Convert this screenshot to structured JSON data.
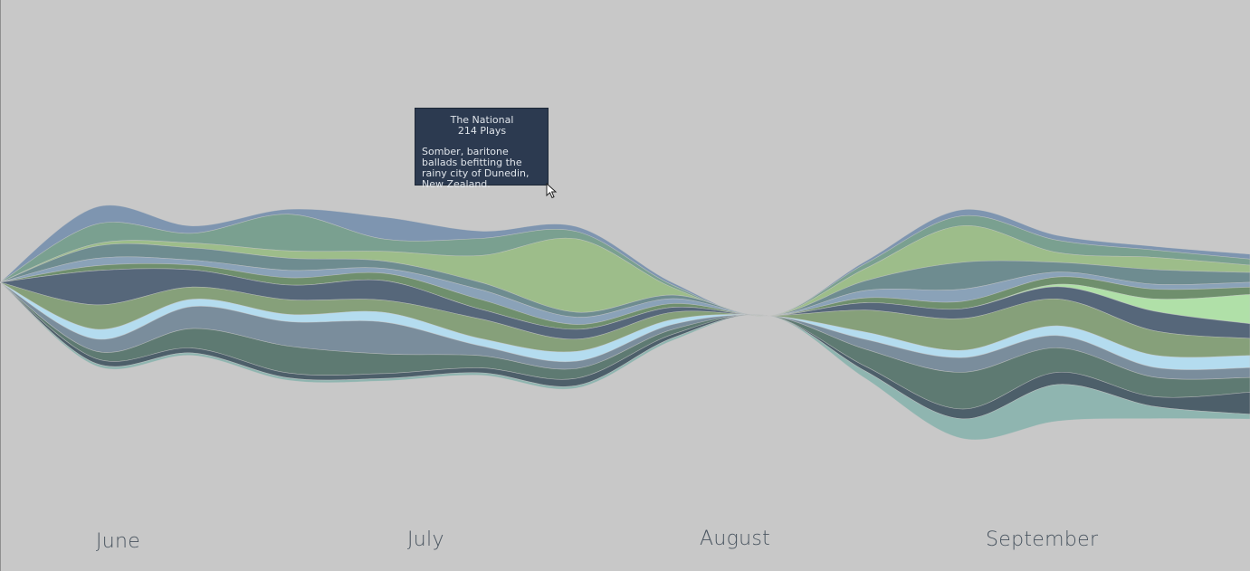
{
  "chart_data": {
    "type": "area",
    "layout": "streamgraph",
    "months": [
      "June",
      "July",
      "August",
      "September"
    ],
    "series": [
      {
        "color": "#7e95b0",
        "values": [
          0,
          14,
          6,
          4,
          18,
          6,
          4,
          2,
          0,
          2,
          5,
          4,
          3,
          4
        ]
      },
      {
        "color": "#7aa090",
        "values": [
          0,
          16,
          8,
          30,
          10,
          14,
          6,
          2,
          0,
          4,
          8,
          10,
          6,
          5
        ]
      },
      {
        "color": "#9dbd8a",
        "values": [
          0,
          2,
          4,
          6,
          8,
          22,
          60,
          6,
          0,
          10,
          30,
          8,
          10,
          6
        ]
      },
      {
        "color": "#6e8c90",
        "values": [
          0,
          10,
          10,
          10,
          6,
          6,
          4,
          3,
          0,
          8,
          22,
          8,
          12,
          8
        ]
      },
      {
        "color": "#8aa2b8",
        "values": [
          0,
          6,
          4,
          6,
          4,
          8,
          6,
          4,
          0,
          6,
          10,
          4,
          4,
          4
        ]
      },
      {
        "color": "#6f8f6d",
        "values": [
          0,
          4,
          4,
          6,
          6,
          8,
          4,
          3,
          0,
          4,
          6,
          6,
          8,
          6
        ]
      },
      {
        "color": "#b0e0a8",
        "values": [
          0,
          0,
          0,
          0,
          0,
          0,
          0,
          0,
          0,
          0,
          0,
          2,
          10,
          24
        ]
      },
      {
        "color": "#56677a",
        "values": [
          0,
          28,
          14,
          12,
          16,
          8,
          8,
          4,
          0,
          6,
          8,
          10,
          16,
          12
        ]
      },
      {
        "color": "#86a07a",
        "values": [
          0,
          20,
          10,
          12,
          10,
          16,
          10,
          6,
          0,
          18,
          26,
          22,
          20,
          14
        ]
      },
      {
        "color": "#b4dcef",
        "values": [
          0,
          8,
          6,
          6,
          8,
          6,
          8,
          4,
          0,
          6,
          6,
          8,
          10,
          10
        ]
      },
      {
        "color": "#7a8d9c",
        "values": [
          0,
          10,
          18,
          20,
          26,
          8,
          6,
          4,
          0,
          8,
          12,
          10,
          8,
          8
        ]
      },
      {
        "color": "#5e7a72",
        "values": [
          0,
          6,
          16,
          22,
          16,
          10,
          8,
          4,
          0,
          14,
          30,
          20,
          16,
          12
        ]
      },
      {
        "color": "#4d5f6a",
        "values": [
          0,
          4,
          4,
          4,
          4,
          4,
          6,
          3,
          0,
          4,
          8,
          10,
          8,
          18
        ]
      },
      {
        "color": "#8fb5b0",
        "values": [
          0,
          2,
          2,
          2,
          2,
          2,
          2,
          2,
          0,
          6,
          16,
          30,
          10,
          4
        ]
      }
    ]
  },
  "tooltip": {
    "title": "The National",
    "plays": "214 Plays",
    "description": "Somber, baritone ballads befitting the rainy city of Dunedin, New Zealand."
  }
}
